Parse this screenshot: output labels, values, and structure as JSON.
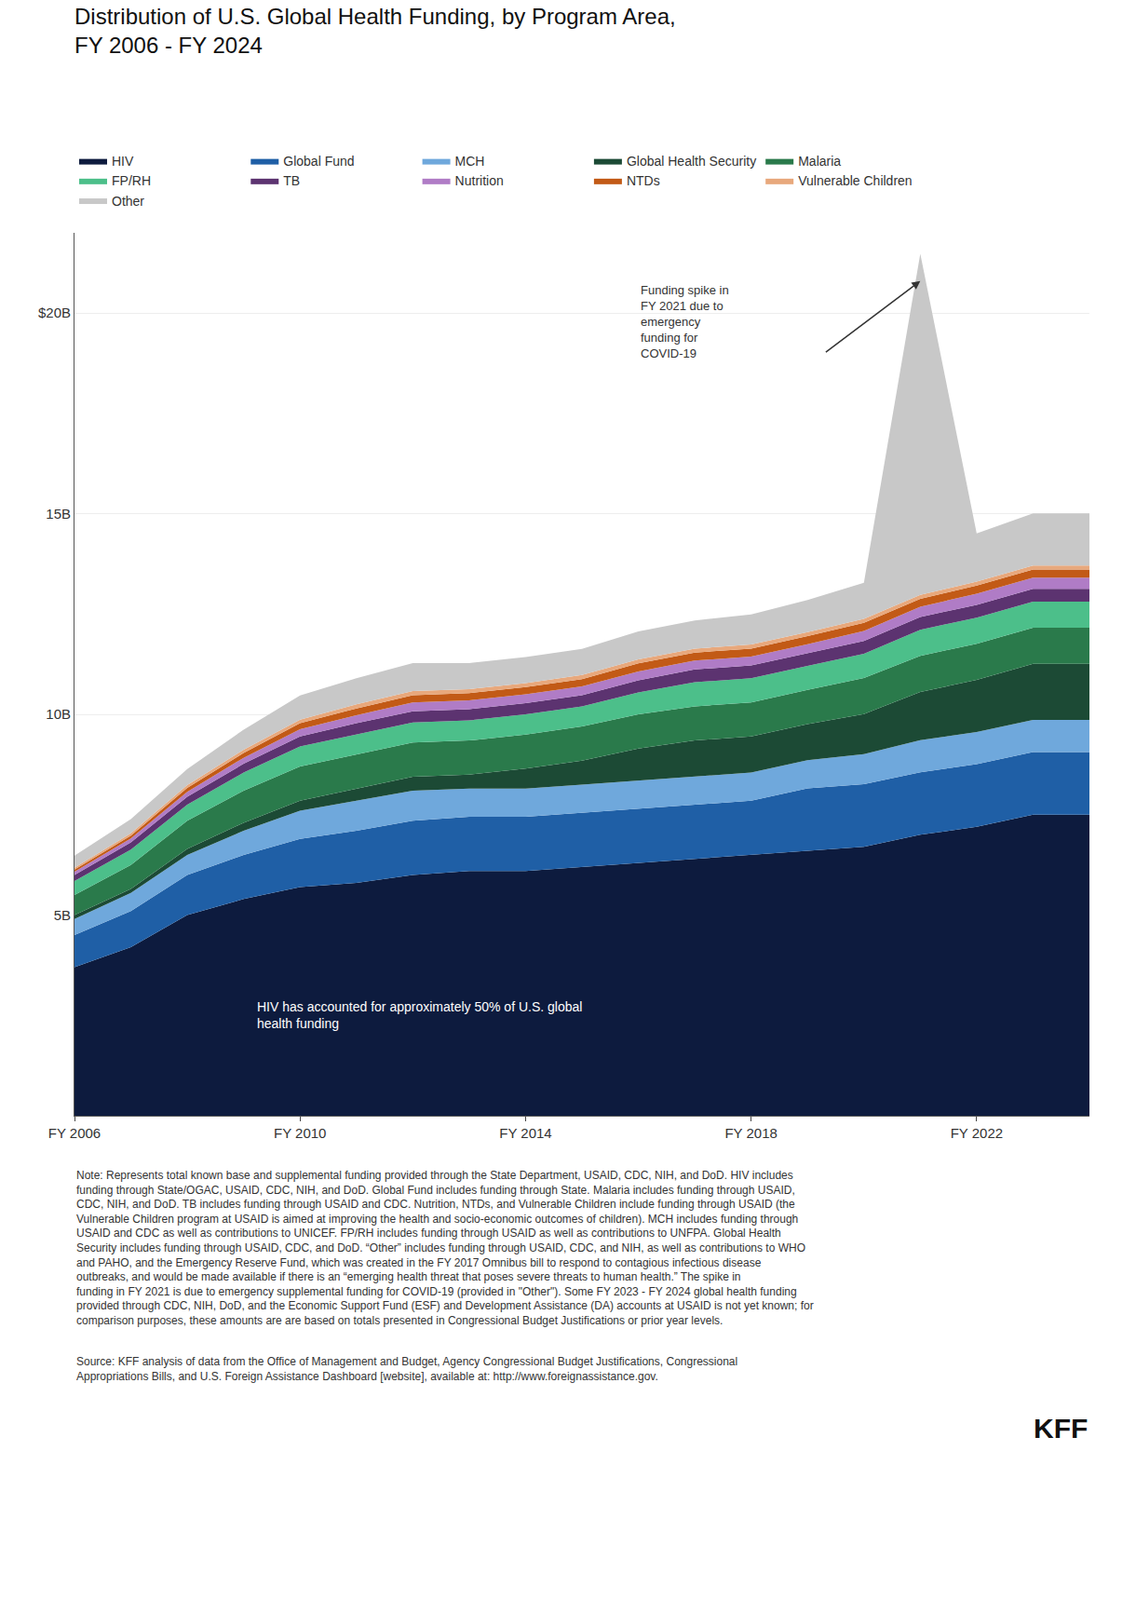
{
  "chart_data": {
    "type": "area",
    "stacked": true,
    "title": "Distribution of U.S. Global Health Funding, by Program Area,\nFY 2006 - FY 2024",
    "x": [
      2006,
      2007,
      2008,
      2009,
      2010,
      2011,
      2012,
      2013,
      2014,
      2015,
      2016,
      2017,
      2018,
      2019,
      2020,
      2021,
      2022,
      2023,
      2024
    ],
    "xlim": [
      2006,
      2024
    ],
    "xticks": [
      {
        "value": 2006,
        "label": "FY 2006"
      },
      {
        "value": 2010,
        "label": "FY 2010"
      },
      {
        "value": 2014,
        "label": "FY 2014"
      },
      {
        "value": 2018,
        "label": "FY 2018"
      },
      {
        "value": 2022,
        "label": "FY 2022"
      }
    ],
    "ylim": [
      0,
      22
    ],
    "yticks": [
      {
        "value": 5,
        "label": "5B"
      },
      {
        "value": 10,
        "label": "10B"
      },
      {
        "value": 15,
        "label": "15B"
      },
      {
        "value": 20,
        "label": "$20B"
      }
    ],
    "grid": "y",
    "legend": "top",
    "series": [
      {
        "name": "HIV",
        "color": "#0d1b3e",
        "values": [
          3.7,
          4.2,
          5.0,
          5.4,
          5.7,
          5.8,
          6.0,
          6.1,
          6.1,
          6.2,
          6.3,
          6.4,
          6.5,
          6.6,
          6.7,
          7.0,
          7.2,
          7.5,
          7.5
        ]
      },
      {
        "name": "Global Fund",
        "color": "#1f5fa6",
        "values": [
          0.8,
          0.9,
          1.0,
          1.1,
          1.2,
          1.3,
          1.35,
          1.35,
          1.35,
          1.35,
          1.35,
          1.35,
          1.35,
          1.56,
          1.56,
          1.56,
          1.56,
          1.56,
          1.56
        ]
      },
      {
        "name": "MCH",
        "color": "#6fa8dc",
        "values": [
          0.4,
          0.45,
          0.5,
          0.6,
          0.7,
          0.75,
          0.75,
          0.7,
          0.7,
          0.7,
          0.7,
          0.7,
          0.7,
          0.7,
          0.75,
          0.8,
          0.8,
          0.8,
          0.8
        ]
      },
      {
        "name": "Global Health Security",
        "color": "#1c4a35",
        "values": [
          0.1,
          0.1,
          0.15,
          0.2,
          0.25,
          0.3,
          0.35,
          0.35,
          0.5,
          0.6,
          0.8,
          0.9,
          0.9,
          0.9,
          1.0,
          1.2,
          1.3,
          1.4,
          1.4
        ]
      },
      {
        "name": "Malaria",
        "color": "#2a7a4b",
        "values": [
          0.5,
          0.6,
          0.7,
          0.8,
          0.85,
          0.85,
          0.85,
          0.85,
          0.85,
          0.85,
          0.85,
          0.85,
          0.85,
          0.85,
          0.9,
          0.9,
          0.9,
          0.9,
          0.9
        ]
      },
      {
        "name": "FP/RH",
        "color": "#4cbf8a",
        "values": [
          0.35,
          0.38,
          0.4,
          0.45,
          0.5,
          0.5,
          0.5,
          0.5,
          0.5,
          0.5,
          0.55,
          0.6,
          0.6,
          0.6,
          0.6,
          0.65,
          0.65,
          0.65,
          0.65
        ]
      },
      {
        "name": "TB",
        "color": "#5c3370",
        "values": [
          0.15,
          0.18,
          0.2,
          0.22,
          0.25,
          0.28,
          0.28,
          0.28,
          0.28,
          0.28,
          0.3,
          0.32,
          0.32,
          0.32,
          0.32,
          0.32,
          0.32,
          0.32,
          0.32
        ]
      },
      {
        "name": "Nutrition",
        "color": "#b07cc6",
        "values": [
          0.08,
          0.1,
          0.12,
          0.15,
          0.18,
          0.2,
          0.22,
          0.22,
          0.22,
          0.22,
          0.22,
          0.22,
          0.22,
          0.22,
          0.25,
          0.25,
          0.28,
          0.28,
          0.28
        ]
      },
      {
        "name": "NTDs",
        "color": "#c25a16",
        "values": [
          0.05,
          0.07,
          0.1,
          0.12,
          0.15,
          0.17,
          0.18,
          0.18,
          0.18,
          0.18,
          0.2,
          0.2,
          0.2,
          0.2,
          0.2,
          0.2,
          0.2,
          0.2,
          0.2
        ]
      },
      {
        "name": "Vulnerable Children",
        "color": "#e8a87c",
        "values": [
          0.05,
          0.06,
          0.07,
          0.08,
          0.09,
          0.1,
          0.1,
          0.1,
          0.1,
          0.1,
          0.1,
          0.1,
          0.1,
          0.1,
          0.1,
          0.1,
          0.1,
          0.1,
          0.1
        ]
      },
      {
        "name": "Other",
        "color": "#c8c8c8",
        "values": [
          0.3,
          0.35,
          0.4,
          0.5,
          0.6,
          0.65,
          0.7,
          0.65,
          0.65,
          0.65,
          0.7,
          0.7,
          0.75,
          0.8,
          0.9,
          8.5,
          1.2,
          1.3,
          1.3
        ]
      }
    ],
    "annotations": [
      "HIV has accounted for approximately 50% of U.S. global\nhealth funding",
      "Funding spike in\nFY 2021 due to\nemergency\nfunding for\nCOVID-19"
    ],
    "note": "Note: Represents total known base and supplemental funding provided through the State Department, USAID, CDC, NIH, and DoD. HIV includes funding through State/OGAC, USAID, CDC, NIH, and DoD. Global Fund includes funding through State. Malaria includes funding through USAID, CDC, NIH, and DoD. TB includes funding through USAID and CDC. Nutrition, NTDs, and Vulnerable Children include funding through USAID (the Vulnerable Children program at USAID is aimed at improving the health and socio-economic outcomes of children). MCH includes funding through USAID and CDC as well as contributions to UNICEF. FP/RH includes funding through USAID as well as contributions to UNFPA. Global Health Security includes funding through USAID, CDC, and DoD. “Other” includes funding through USAID, CDC, and NIH, as well as contributions to WHO and PAHO, and the Emergency Reserve Fund, which was created in the FY 2017 Omnibus bill to respond to contagious infectious disease outbreaks, and would be made available if there is an “emerging health threat that poses severe threats to human health.” The spike in funding in FY 2021 is due to emergency supplemental funding for COVID-19 (provided in \"Other\"). Some FY 2023 - FY 2024 global health funding provided through CDC, NIH, DoD, and the Economic Support Fund (ESF) and Development Assistance (DA) accounts at USAID is not yet known; for comparison purposes, these amounts are are based on totals presented in Congressional Budget Justifications or prior year levels.",
    "source": "Source: KFF analysis of data from the Office of Management and Budget, Agency Congressional Budget Justifications, Congressional Appropriations Bills, and U.S. Foreign Assistance Dashboard [website], available at: http://www.foreignassistance.gov.",
    "logo": "KFF"
  }
}
